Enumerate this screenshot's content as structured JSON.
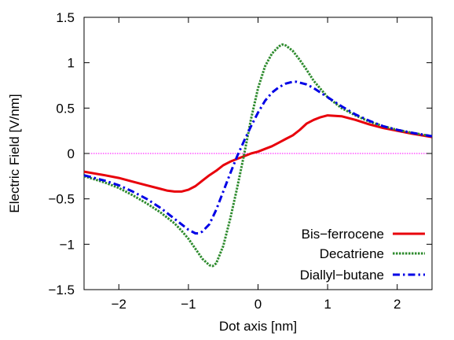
{
  "chart_data": {
    "type": "line",
    "title": "",
    "xlabel": "Dot axis [nm]",
    "ylabel": "Electric Field [V/nm]",
    "xlim": [
      -2.5,
      2.5
    ],
    "ylim": [
      -1.5,
      1.5
    ],
    "xticks": [
      -2,
      -1,
      0,
      1,
      2
    ],
    "xtick_labels": [
      "−2",
      "−1",
      "0",
      "1",
      "2"
    ],
    "yticks": [
      -1.5,
      -1,
      -0.5,
      0,
      0.5,
      1,
      1.5
    ],
    "ytick_labels": [
      "−1.5",
      "−1",
      "−0.5",
      "0",
      "0.5",
      "1",
      "1.5"
    ],
    "grid": false,
    "legend_position": "bottom-right",
    "zero_line": {
      "y": 0,
      "color": "#ff00ff",
      "style": "dotted"
    },
    "series": [
      {
        "name": "Bis−ferrocene",
        "color": "#e8000b",
        "style": "solid",
        "x": [
          -2.5,
          -2.2,
          -2.0,
          -1.8,
          -1.6,
          -1.4,
          -1.3,
          -1.2,
          -1.15,
          -1.1,
          -1.0,
          -0.9,
          -0.8,
          -0.7,
          -0.6,
          -0.5,
          -0.4,
          -0.3,
          -0.2,
          -0.1,
          0.0,
          0.1,
          0.2,
          0.3,
          0.4,
          0.5,
          0.6,
          0.7,
          0.8,
          0.9,
          1.0,
          1.2,
          1.4,
          1.6,
          1.8,
          2.0,
          2.2,
          2.5
        ],
        "y": [
          -0.2,
          -0.24,
          -0.27,
          -0.31,
          -0.35,
          -0.39,
          -0.41,
          -0.42,
          -0.42,
          -0.42,
          -0.4,
          -0.36,
          -0.3,
          -0.24,
          -0.19,
          -0.13,
          -0.09,
          -0.06,
          -0.03,
          0.0,
          0.02,
          0.05,
          0.08,
          0.12,
          0.16,
          0.2,
          0.26,
          0.33,
          0.37,
          0.4,
          0.42,
          0.41,
          0.37,
          0.32,
          0.28,
          0.25,
          0.22,
          0.18
        ]
      },
      {
        "name": "Decatriene",
        "color": "#2e8b2e",
        "style": "dotted",
        "x": [
          -2.5,
          -2.2,
          -2.0,
          -1.8,
          -1.6,
          -1.4,
          -1.2,
          -1.1,
          -1.0,
          -0.9,
          -0.8,
          -0.7,
          -0.65,
          -0.6,
          -0.5,
          -0.4,
          -0.3,
          -0.2,
          -0.1,
          0.0,
          0.1,
          0.2,
          0.3,
          0.35,
          0.4,
          0.5,
          0.6,
          0.7,
          0.8,
          1.0,
          1.2,
          1.4,
          1.6,
          1.8,
          2.0,
          2.2,
          2.5
        ],
        "y": [
          -0.25,
          -0.32,
          -0.38,
          -0.46,
          -0.55,
          -0.65,
          -0.77,
          -0.85,
          -0.94,
          -1.05,
          -1.16,
          -1.23,
          -1.24,
          -1.21,
          -1.02,
          -0.72,
          -0.38,
          -0.01,
          0.38,
          0.72,
          0.96,
          1.1,
          1.18,
          1.2,
          1.19,
          1.13,
          1.03,
          0.92,
          0.8,
          0.62,
          0.5,
          0.42,
          0.35,
          0.3,
          0.26,
          0.23,
          0.19
        ]
      },
      {
        "name": "Diallyl−butane",
        "color": "#0000e6",
        "style": "dashdot",
        "x": [
          -2.5,
          -2.2,
          -2.0,
          -1.8,
          -1.6,
          -1.4,
          -1.2,
          -1.0,
          -0.9,
          -0.85,
          -0.8,
          -0.7,
          -0.6,
          -0.5,
          -0.4,
          -0.3,
          -0.2,
          -0.1,
          0.0,
          0.1,
          0.2,
          0.3,
          0.4,
          0.5,
          0.55,
          0.6,
          0.7,
          0.8,
          1.0,
          1.2,
          1.4,
          1.6,
          1.8,
          2.0,
          2.2,
          2.5
        ],
        "y": [
          -0.24,
          -0.3,
          -0.35,
          -0.42,
          -0.5,
          -0.6,
          -0.72,
          -0.84,
          -0.88,
          -0.88,
          -0.86,
          -0.78,
          -0.62,
          -0.42,
          -0.22,
          -0.03,
          0.14,
          0.3,
          0.45,
          0.58,
          0.67,
          0.73,
          0.77,
          0.79,
          0.79,
          0.78,
          0.76,
          0.72,
          0.62,
          0.52,
          0.43,
          0.36,
          0.3,
          0.26,
          0.23,
          0.19
        ]
      }
    ]
  }
}
